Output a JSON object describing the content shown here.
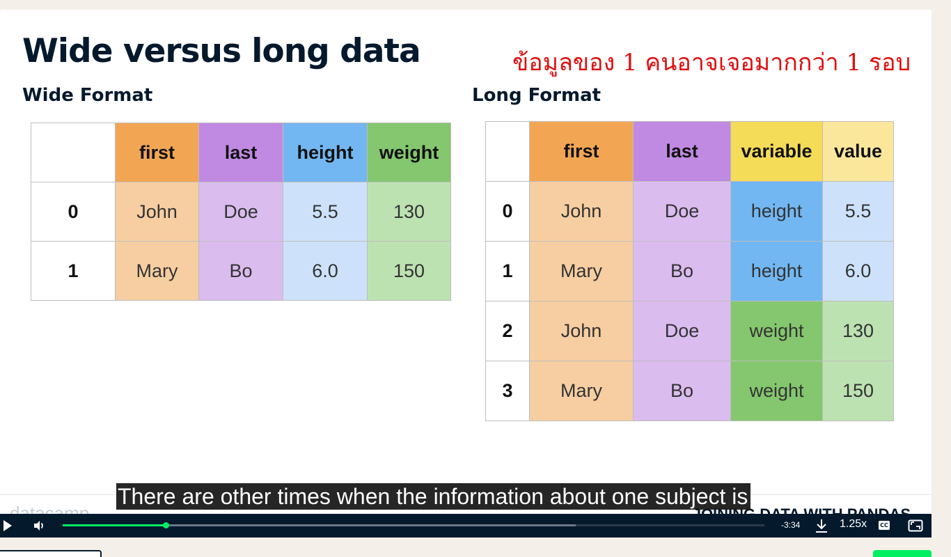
{
  "slide": {
    "title": "Wide versus long data",
    "annotation": "ข้อมูลของ 1 คนอาจเจอมากกว่า 1 รอบ",
    "wide_heading": "Wide Format",
    "long_heading": "Long Format",
    "brand": "datacamp",
    "course_title": "JOINING DATA WITH PANDAS"
  },
  "wide_table": {
    "headers": [
      "",
      "first",
      "last",
      "height",
      "weight"
    ],
    "rows": [
      [
        "0",
        "John",
        "Doe",
        "5.5",
        "130"
      ],
      [
        "1",
        "Mary",
        "Bo",
        "6.0",
        "150"
      ]
    ]
  },
  "long_table": {
    "headers": [
      "",
      "first",
      "last",
      "variable",
      "value"
    ],
    "rows": [
      [
        "0",
        "John",
        "Doe",
        "height",
        "5.5"
      ],
      [
        "1",
        "Mary",
        "Bo",
        "height",
        "6.0"
      ],
      [
        "2",
        "John",
        "Doe",
        "weight",
        "130"
      ],
      [
        "3",
        "Mary",
        "Bo",
        "weight",
        "150"
      ]
    ]
  },
  "caption": "There are other times when the information about one subject is",
  "player": {
    "time_remaining": "-3:34",
    "speed": "1.25x",
    "cc_label": "CC",
    "progress_fraction": 0.147,
    "buffered_fraction": 0.731,
    "accent_color": "#03ef62",
    "bar_color": "#05192d"
  }
}
